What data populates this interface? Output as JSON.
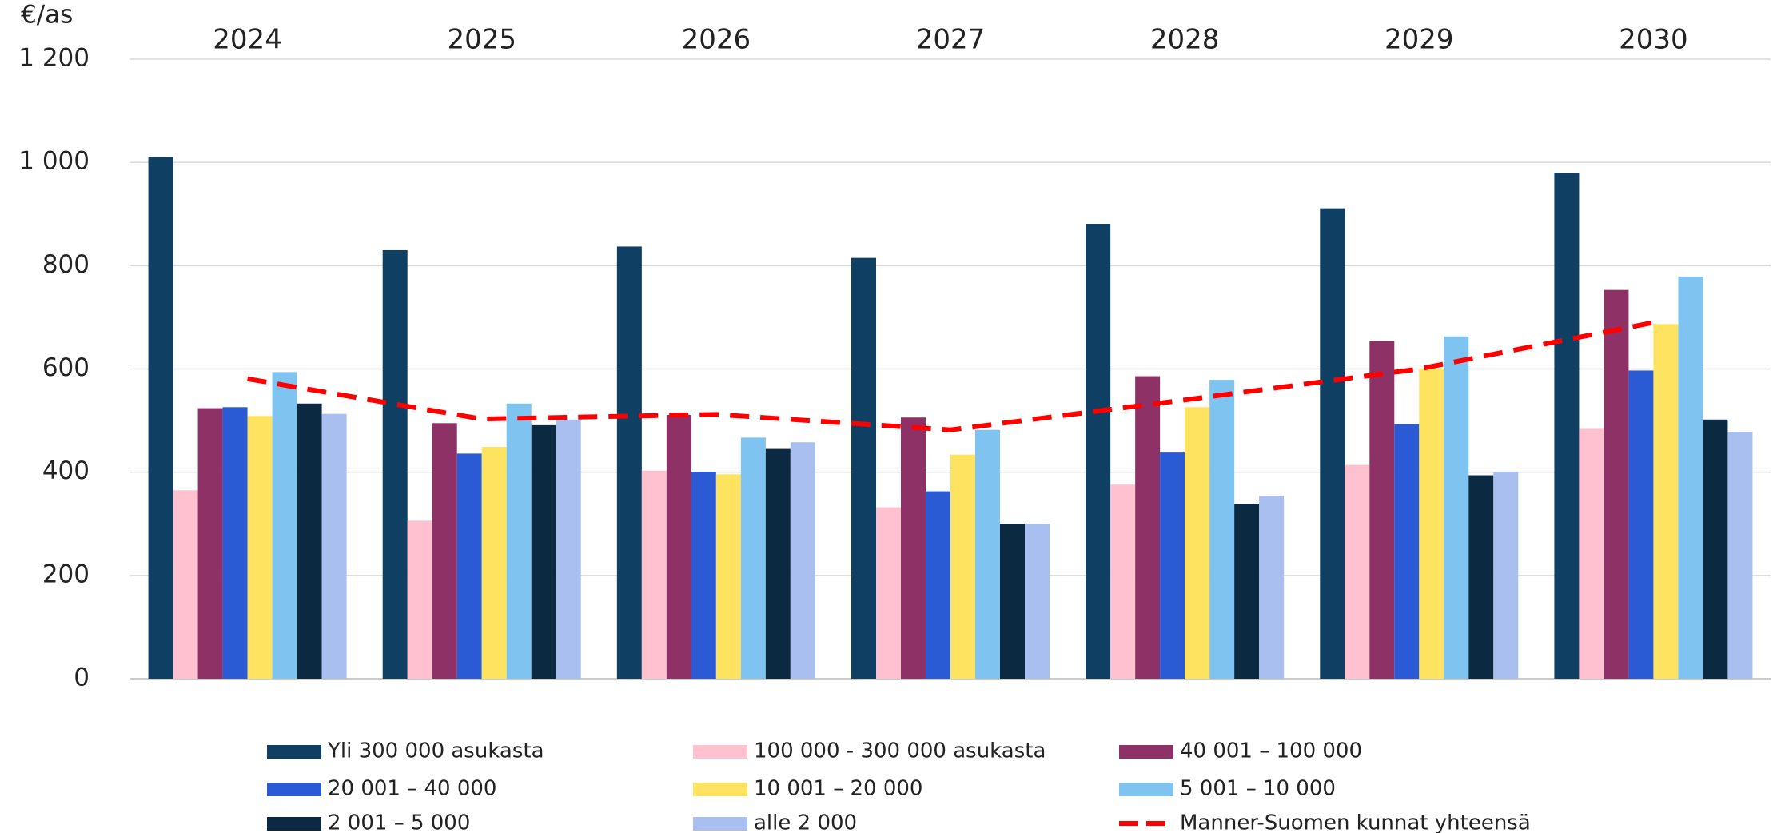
{
  "chart_data": {
    "type": "bar",
    "y_label": "€/as",
    "categories": [
      "2024",
      "2025",
      "2026",
      "2027",
      "2028",
      "2029",
      "2030"
    ],
    "series": [
      {
        "name": "Yli 300 000 asukasta",
        "color": "#0f3f62",
        "values": [
          1010,
          830,
          837,
          815,
          881,
          911,
          980
        ]
      },
      {
        "name": "100 000 - 300 000 asukasta",
        "color": "#ffc0d0",
        "values": [
          365,
          306,
          403,
          332,
          376,
          414,
          484
        ]
      },
      {
        "name": "40 001 – 100 000",
        "color": "#8e3166",
        "values": [
          524,
          495,
          511,
          506,
          586,
          654,
          753
        ]
      },
      {
        "name": "20 001 – 40 000",
        "color": "#2a5bd4",
        "values": [
          526,
          436,
          401,
          363,
          438,
          493,
          597
        ]
      },
      {
        "name": "10 001 – 20 000",
        "color": "#fde35f",
        "values": [
          509,
          449,
          396,
          434,
          526,
          601,
          687
        ]
      },
      {
        "name": "5 001 – 10 000",
        "color": "#7fc4f0",
        "values": [
          594,
          533,
          467,
          482,
          579,
          663,
          779
        ]
      },
      {
        "name": "2 001 – 5 000",
        "color": "#0b2940",
        "values": [
          533,
          491,
          445,
          300,
          339,
          394,
          502
        ]
      },
      {
        "name": "alle 2 000",
        "color": "#a8bff0",
        "values": [
          513,
          502,
          458,
          300,
          354,
          401,
          478
        ]
      },
      {
        "name": "Manner-Suomen kunnat yhteensä",
        "color": "#ff0000",
        "type": "line",
        "dashed": true,
        "values": [
          581,
          503,
          512,
          482,
          540,
          600,
          690
        ]
      }
    ],
    "ylim": [
      0,
      1200
    ],
    "yticks": [
      0,
      200,
      400,
      600,
      800,
      {
        "value": 1000,
        "label": "1 000"
      },
      {
        "value": 1200,
        "label": "1 200"
      }
    ],
    "grid": true,
    "legend": "bottom"
  }
}
